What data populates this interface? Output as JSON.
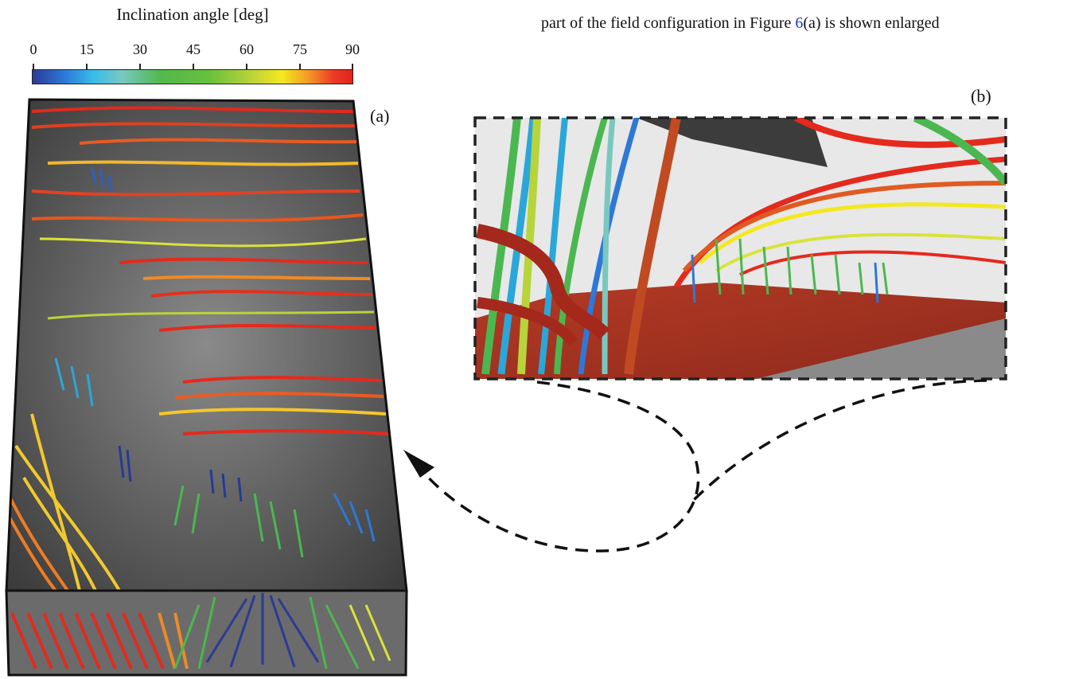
{
  "colorbar": {
    "title": "Inclination angle [deg]",
    "ticks": [
      "0",
      "15",
      "30",
      "45",
      "60",
      "75",
      "90"
    ],
    "min": 0,
    "max": 90,
    "colors": [
      "#2a3b96",
      "#37bde8",
      "#52b94c",
      "#f4e81e",
      "#e2231d"
    ]
  },
  "caption": {
    "before": "part of the field configuration in Figure ",
    "ref": "6",
    "after": "(a) is shown enlarged",
    "ref_color": "#2233cc"
  },
  "panels": {
    "a_label": "(a)",
    "b_label": "(b)"
  }
}
